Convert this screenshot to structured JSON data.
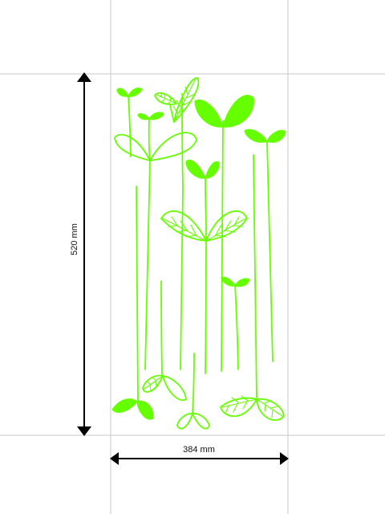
{
  "dimensions": {
    "height": {
      "value": 520,
      "unit": "mm",
      "label": "520 mm"
    },
    "width": {
      "value": 384,
      "unit": "mm",
      "label": "384 mm"
    }
  },
  "colors": {
    "plant": "#66ff00",
    "guide_lines": "#c8c8c8",
    "arrows": "#000000",
    "background": "#ffffff"
  },
  "artwork": {
    "subject": "sprouts"
  }
}
